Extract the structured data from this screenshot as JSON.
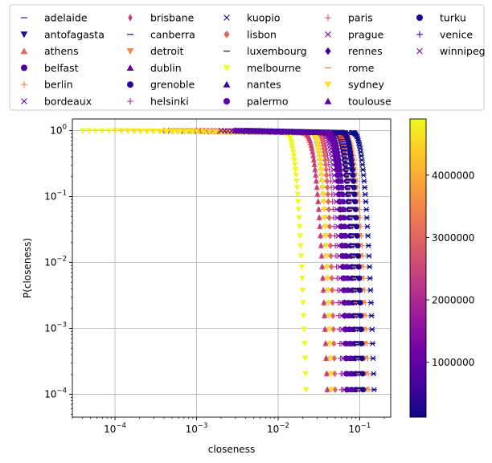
{
  "chart_data": {
    "type": "scatter",
    "xlabel": "closeness",
    "ylabel": "P(closeness)",
    "x_scale": "log",
    "y_scale": "log",
    "xlim": [
      3e-05,
      0.24
    ],
    "ylim": [
      4.5e-05,
      1.5
    ],
    "grid": true,
    "legend_position": "top",
    "x_ticks": [
      {
        "value": 0.0001,
        "label": "10",
        "exp": "−4"
      },
      {
        "value": 0.001,
        "label": "10",
        "exp": "−3"
      },
      {
        "value": 0.01,
        "label": "10",
        "exp": "−2"
      },
      {
        "value": 0.1,
        "label": "10",
        "exp": "−1"
      }
    ],
    "y_ticks": [
      {
        "value": 1,
        "label": "10",
        "exp": "0"
      },
      {
        "value": 0.1,
        "label": "10",
        "exp": "−1"
      },
      {
        "value": 0.01,
        "label": "10",
        "exp": "−2"
      },
      {
        "value": 0.001,
        "label": "10",
        "exp": "−3"
      },
      {
        "value": 0.0001,
        "label": "10",
        "exp": "−4"
      }
    ],
    "colorbar": {
      "colormap": "plasma",
      "min": 120000,
      "max": 4900000,
      "ticks": [
        {
          "value": 1000000,
          "label": "1000000"
        },
        {
          "value": 2000000,
          "label": "2000000"
        },
        {
          "value": 3000000,
          "label": "3000000"
        },
        {
          "value": 4000000,
          "label": "4000000"
        }
      ]
    },
    "series": [
      {
        "name": "adelaide",
        "marker": "hline",
        "color": "#6a00a8",
        "xmin": 0.003,
        "xknee": 0.045,
        "xend": 0.085
      },
      {
        "name": "antofagasta",
        "marker": "tri-down",
        "color": "#1f0c8f",
        "xmin": 0.004,
        "xknee": 0.05,
        "xend": 0.1
      },
      {
        "name": "athens",
        "marker": "tri-up",
        "color": "#e3685f",
        "xmin": 0.0008,
        "xknee": 0.02,
        "xend": 0.04
      },
      {
        "name": "belfast",
        "marker": "circle",
        "color": "#4c02a1",
        "xmin": 0.003,
        "xknee": 0.04,
        "xend": 0.08
      },
      {
        "name": "berlin",
        "marker": "plus",
        "color": "#f2844b",
        "xmin": 0.004,
        "xknee": 0.06,
        "xend": 0.13
      },
      {
        "name": "bordeaux",
        "marker": "x",
        "color": "#5b01a5",
        "xmin": 0.003,
        "xknee": 0.04,
        "xend": 0.08
      },
      {
        "name": "brisbane",
        "marker": "thin-diamond",
        "color": "#c33d80",
        "xmin": 0.0004,
        "xknee": 0.02,
        "xend": 0.04
      },
      {
        "name": "canberra",
        "marker": "hline",
        "color": "#3c049b",
        "xmin": 0.003,
        "xknee": 0.05,
        "xend": 0.09
      },
      {
        "name": "detroit",
        "marker": "tri-down",
        "color": "#f48849",
        "xmin": 0.0005,
        "xknee": 0.06,
        "xend": 0.12
      },
      {
        "name": "dublin",
        "marker": "tri-up",
        "color": "#6a00a8",
        "xmin": 0.003,
        "xknee": 0.04,
        "xend": 0.08
      },
      {
        "name": "grenoble",
        "marker": "circle",
        "color": "#2a0593",
        "xmin": 0.003,
        "xknee": 0.05,
        "xend": 0.09
      },
      {
        "name": "helsinki",
        "marker": "plus",
        "color": "#a82296",
        "xmin": 0.001,
        "xknee": 0.03,
        "xend": 0.06
      },
      {
        "name": "kuopio",
        "marker": "x",
        "color": "#0d0887",
        "xmin": 0.005,
        "xknee": 0.08,
        "xend": 0.15
      },
      {
        "name": "lisbon",
        "marker": "diamond",
        "color": "#e16462",
        "xmin": 0.001,
        "xknee": 0.03,
        "xend": 0.05
      },
      {
        "name": "luxembourg",
        "marker": "hline",
        "color": "#0d0887",
        "xmin": 0.005,
        "xknee": 0.08,
        "xend": 0.15
      },
      {
        "name": "melbourne",
        "marker": "tri-down",
        "color": "#f0f921",
        "xmin": 4e-05,
        "xknee": 0.012,
        "xend": 0.022
      },
      {
        "name": "nantes",
        "marker": "tri-up",
        "color": "#3a049a",
        "xmin": 0.003,
        "xknee": 0.04,
        "xend": 0.08
      },
      {
        "name": "palermo",
        "marker": "circle",
        "color": "#5d01a6",
        "xmin": 0.003,
        "xknee": 0.04,
        "xend": 0.07
      },
      {
        "name": "paris",
        "marker": "plus",
        "color": "#d5536f",
        "xmin": 0.001,
        "xknee": 0.025,
        "xend": 0.045
      },
      {
        "name": "prague",
        "marker": "x",
        "color": "#7e03a8",
        "xmin": 0.002,
        "xknee": 0.035,
        "xend": 0.065
      },
      {
        "name": "rennes",
        "marker": "diamond",
        "color": "#350498",
        "xmin": 0.003,
        "xknee": 0.04,
        "xend": 0.07
      },
      {
        "name": "rome",
        "marker": "hline",
        "color": "#f07f4f",
        "xmin": 0.002,
        "xknee": 0.05,
        "xend": 0.1
      },
      {
        "name": "sydney",
        "marker": "tri-down",
        "color": "#f7e225",
        "xmin": 0.0001,
        "xknee": 0.025,
        "xend": 0.045
      },
      {
        "name": "toulouse",
        "marker": "tri-up",
        "color": "#5c01a6",
        "xmin": 0.003,
        "xknee": 0.04,
        "xend": 0.08
      },
      {
        "name": "turku",
        "marker": "circle",
        "color": "#1b068d",
        "xmin": 0.004,
        "xknee": 0.06,
        "xend": 0.11
      },
      {
        "name": "venice",
        "marker": "plus",
        "color": "#4903a0",
        "xmin": 0.003,
        "xknee": 0.04,
        "xend": 0.07
      },
      {
        "name": "winnipeg",
        "marker": "x",
        "color": "#6f00a8",
        "xmin": 0.002,
        "xknee": 0.04,
        "xend": 0.07
      }
    ]
  }
}
